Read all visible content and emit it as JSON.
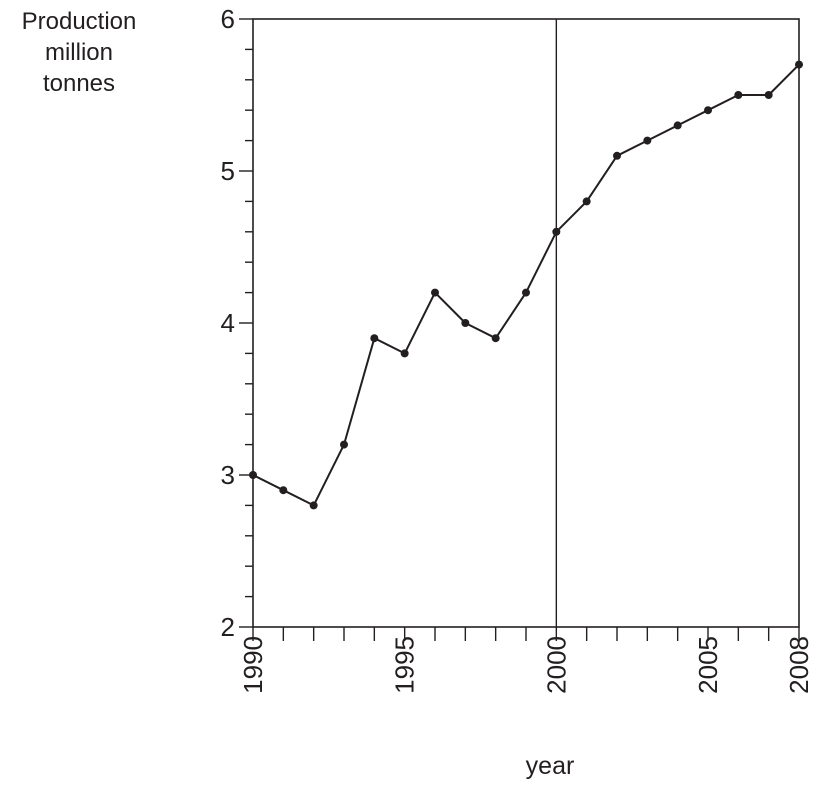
{
  "chart_data": {
    "type": "line",
    "ylabel_lines": [
      "Production",
      "million",
      "tonnes"
    ],
    "xlabel": "year",
    "xlim": [
      1990,
      2008
    ],
    "ylim": [
      2,
      6
    ],
    "x_tick_labels": [
      "1990",
      "1995",
      "2000",
      "2005",
      "2008"
    ],
    "y_tick_labels": [
      "2",
      "3",
      "4",
      "5",
      "6"
    ],
    "reference_line_x": 2000,
    "grid": false,
    "series": [
      {
        "x": [
          1990,
          1991,
          1992,
          1993,
          1994,
          1995,
          1996,
          1997,
          1998,
          1999,
          2000,
          2001,
          2002,
          2003,
          2004,
          2005,
          2006,
          2007,
          2008
        ],
        "y": [
          3.0,
          2.9,
          2.8,
          3.2,
          3.9,
          3.8,
          4.2,
          4.0,
          3.9,
          4.2,
          4.6,
          4.8,
          5.1,
          5.2,
          5.3,
          5.4,
          5.5,
          5.5,
          5.7
        ]
      }
    ]
  }
}
